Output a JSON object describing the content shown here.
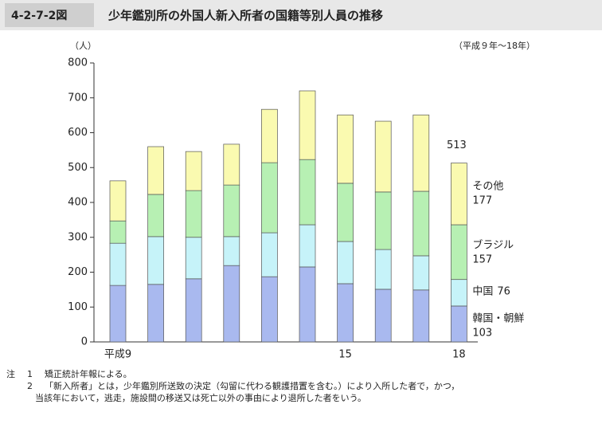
{
  "header": {
    "figure_no": "4-2-7-2図",
    "title": "少年鑑別所の外国人新入所者の国籍等別人員の推移"
  },
  "chart_data": {
    "type": "stacked-bar",
    "period": "（平成９年～18年）",
    "y_label": "（人）",
    "categories": [
      "平成9",
      null,
      null,
      null,
      null,
      null,
      "15",
      null,
      null,
      "18"
    ],
    "series": [
      {
        "name": "韓国・朝鮮",
        "color": "#a9b9ef",
        "values": [
          162,
          165,
          181,
          219,
          187,
          215,
          167,
          151,
          149,
          103
        ]
      },
      {
        "name": "中国",
        "color": "#c6f3f9",
        "values": [
          121,
          137,
          119,
          83,
          126,
          121,
          121,
          114,
          98,
          76
        ]
      },
      {
        "name": "ブラジル",
        "color": "#b7f0b3",
        "values": [
          64,
          121,
          134,
          148,
          201,
          187,
          167,
          165,
          185,
          157
        ]
      },
      {
        "name": "その他",
        "color": "#fafab0",
        "values": [
          115,
          137,
          112,
          117,
          153,
          197,
          196,
          203,
          219,
          177
        ]
      }
    ],
    "last_total": 513,
    "ylim": [
      0,
      800
    ],
    "yticks": [
      0,
      100,
      200,
      300,
      400,
      500,
      600,
      700,
      800
    ]
  },
  "notes": {
    "label": "注",
    "items": [
      {
        "num": "1",
        "lines": [
          "矯正統計年報による。"
        ]
      },
      {
        "num": "2",
        "lines": [
          "「新入所者」とは，少年鑑別所送致の決定（勾留に代わる観護措置を含む。）により入所した者で，かつ，",
          "当該年において，逃走，施設間の移送又は死亡以外の事由により退所した者をいう。"
        ]
      }
    ]
  }
}
